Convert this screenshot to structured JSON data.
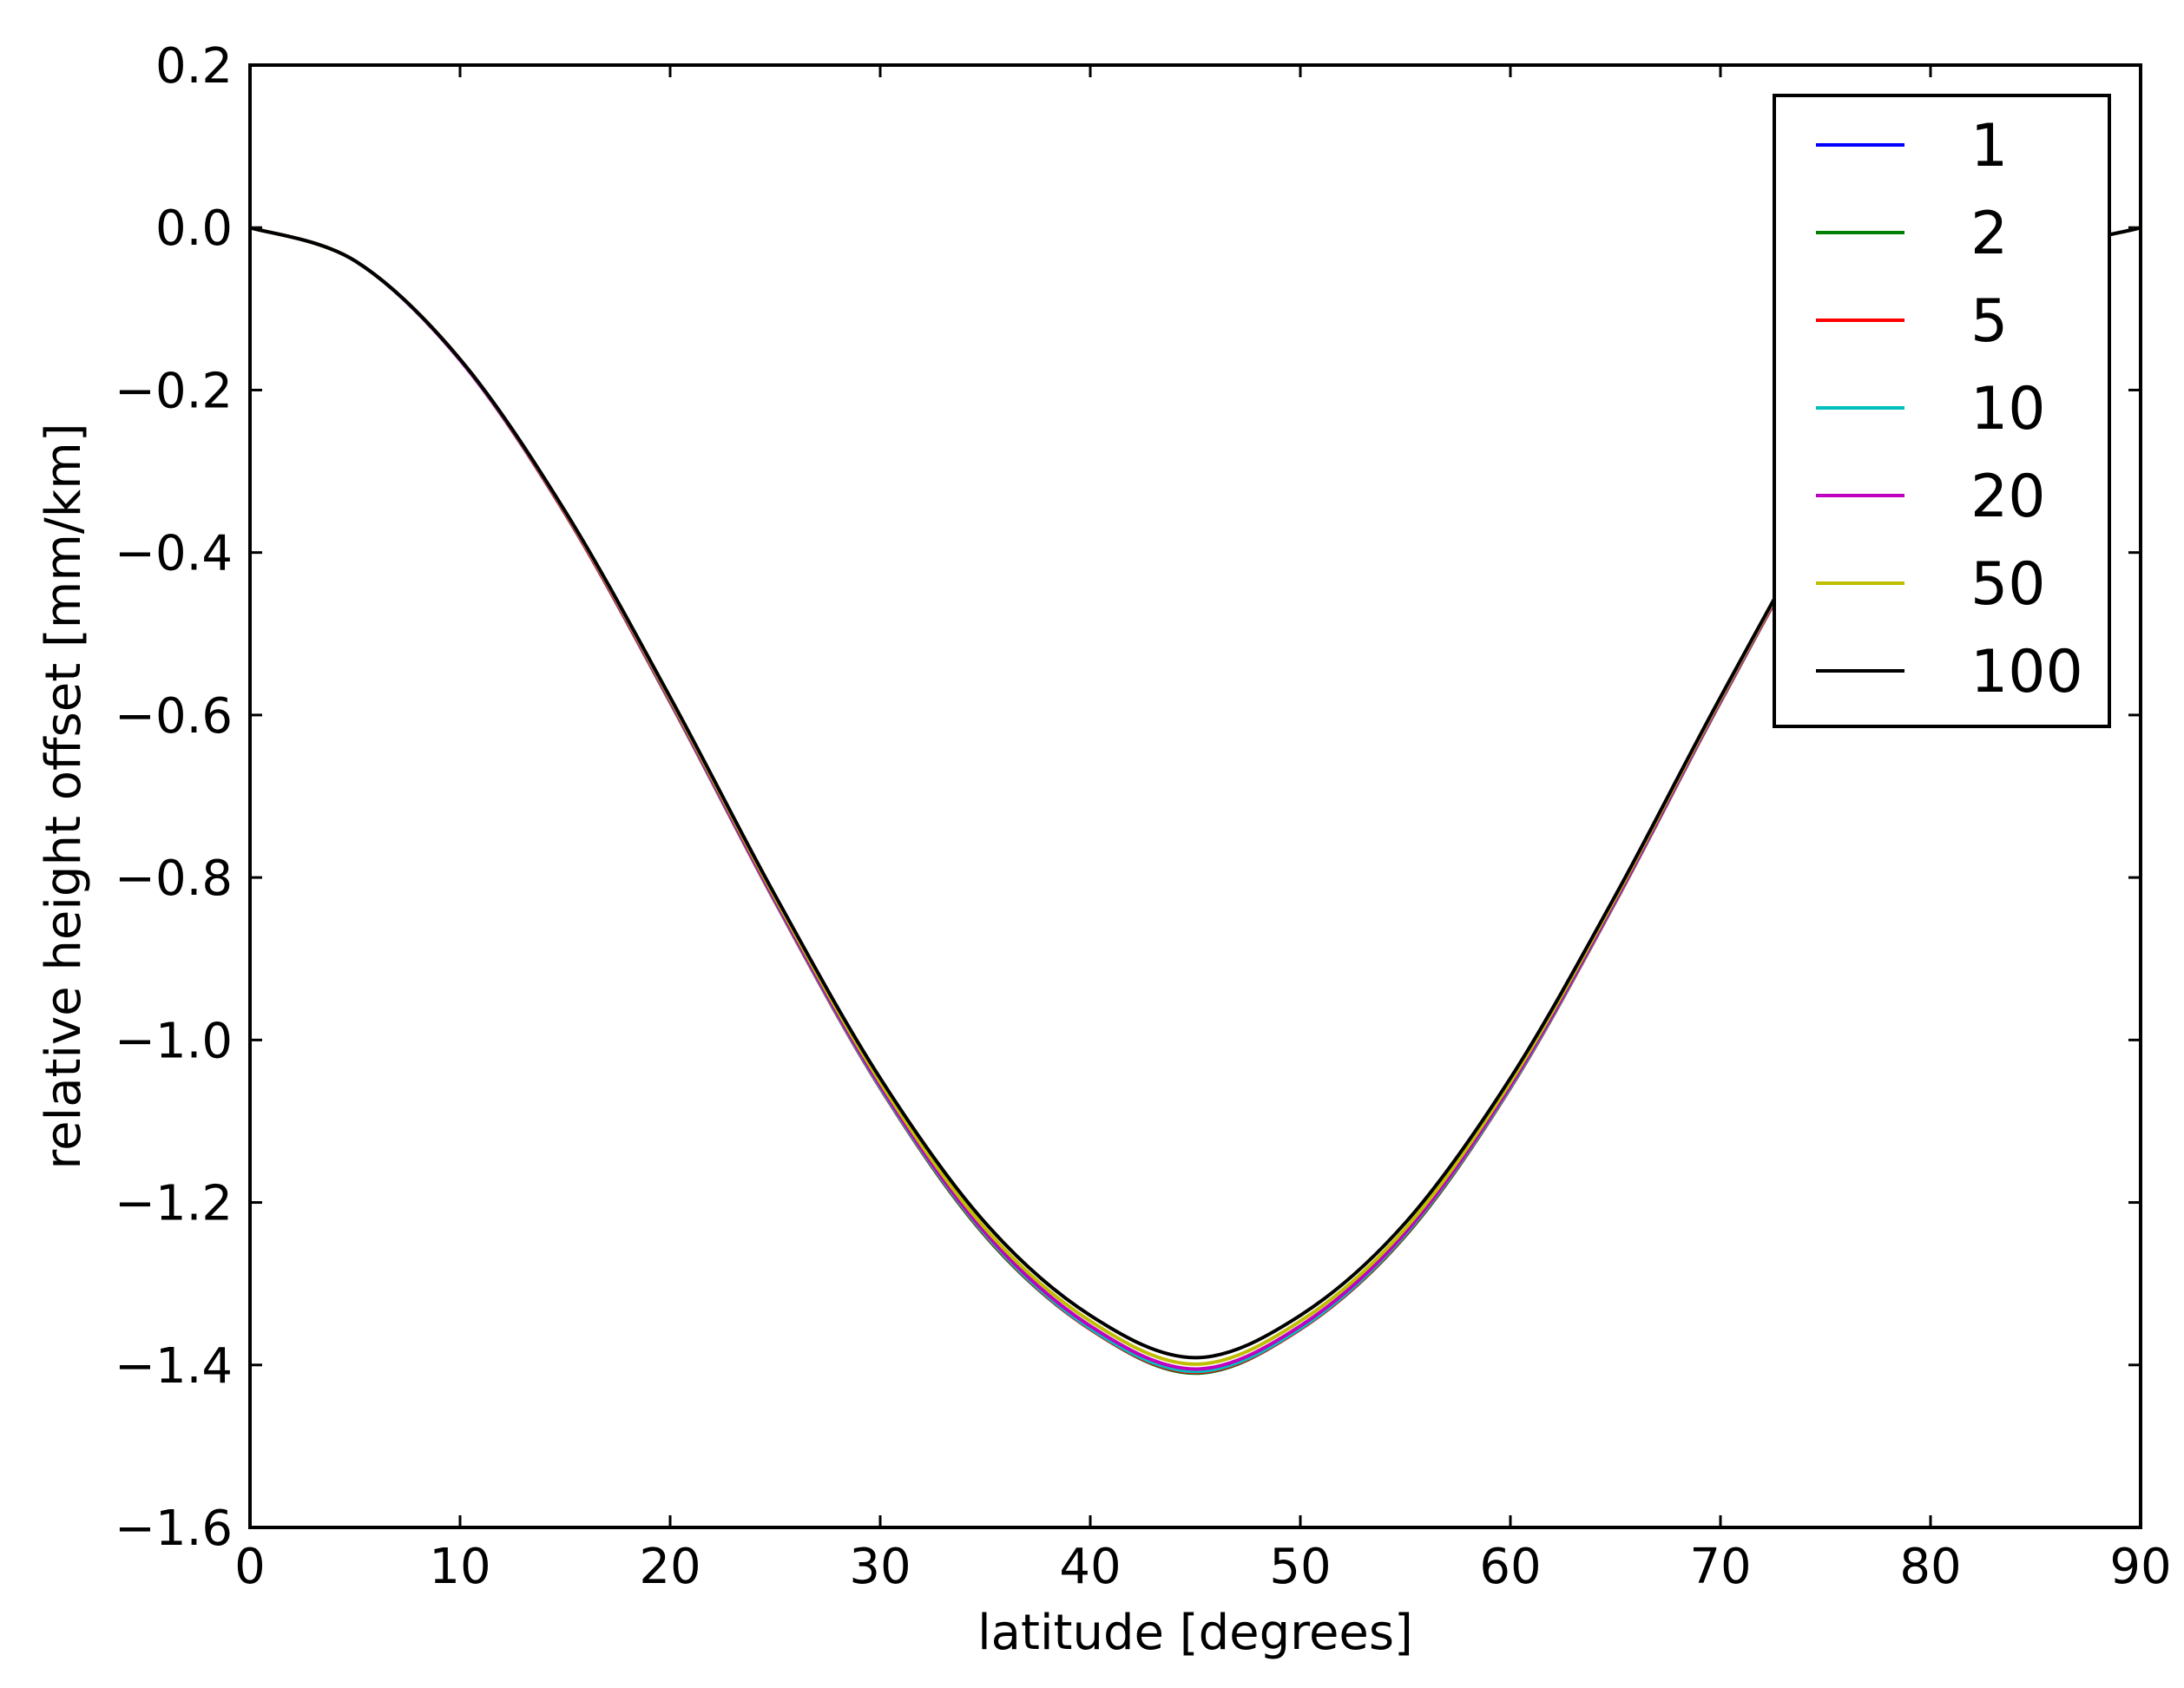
{
  "chart_data": {
    "type": "line",
    "title": "",
    "xlabel": "latitude [degrees]",
    "ylabel": "relative height offset [mm/km]",
    "xlim": [
      0,
      90
    ],
    "ylim": [
      -1.6,
      0.2
    ],
    "xticks": [
      0,
      10,
      20,
      30,
      40,
      50,
      60,
      70,
      80,
      90
    ],
    "xtick_labels": [
      "0",
      "10",
      "20",
      "30",
      "40",
      "50",
      "60",
      "70",
      "80",
      "90"
    ],
    "yticks": [
      0.2,
      0.0,
      -0.2,
      -0.4,
      -0.6,
      -0.8,
      -1.0,
      -1.2,
      -1.4,
      -1.6
    ],
    "ytick_labels": [
      "0.2",
      "0.0",
      "−0.2",
      "−0.4",
      "−0.6",
      "−0.8",
      "−1.0",
      "−1.2",
      "−1.4",
      "−1.6"
    ],
    "grid": false,
    "legend_position": "top-right",
    "x": [
      0,
      5,
      10,
      15,
      20,
      25,
      30,
      35,
      40,
      45,
      50,
      55,
      60,
      65,
      70,
      75,
      80,
      85,
      90
    ],
    "series": [
      {
        "name": "1",
        "color": "#0000ff",
        "values": [
          0.0,
          -0.041,
          -0.163,
          -0.352,
          -0.584,
          -0.83,
          -1.059,
          -1.241,
          -1.356,
          -1.41,
          -1.356,
          -1.241,
          -1.059,
          -0.83,
          -0.584,
          -0.352,
          -0.163,
          -0.041,
          0.0
        ]
      },
      {
        "name": "2",
        "color": "#008000",
        "values": [
          0.0,
          -0.041,
          -0.163,
          -0.352,
          -0.584,
          -0.83,
          -1.059,
          -1.241,
          -1.356,
          -1.41,
          -1.356,
          -1.241,
          -1.059,
          -0.83,
          -0.584,
          -0.352,
          -0.163,
          -0.041,
          0.0
        ]
      },
      {
        "name": "5",
        "color": "#ff0000",
        "values": [
          0.0,
          -0.041,
          -0.163,
          -0.352,
          -0.584,
          -0.83,
          -1.059,
          -1.24,
          -1.356,
          -1.409,
          -1.356,
          -1.24,
          -1.059,
          -0.83,
          -0.584,
          -0.352,
          -0.163,
          -0.041,
          0.0
        ]
      },
      {
        "name": "10",
        "color": "#00bfbf",
        "values": [
          0.0,
          -0.041,
          -0.163,
          -0.351,
          -0.583,
          -0.829,
          -1.058,
          -1.239,
          -1.355,
          -1.408,
          -1.355,
          -1.239,
          -1.058,
          -0.829,
          -0.583,
          -0.351,
          -0.163,
          -0.041,
          0.0
        ]
      },
      {
        "name": "20",
        "color": "#bf00bf",
        "values": [
          0.0,
          -0.041,
          -0.163,
          -0.351,
          -0.582,
          -0.828,
          -1.056,
          -1.237,
          -1.352,
          -1.405,
          -1.352,
          -1.237,
          -1.056,
          -0.828,
          -0.582,
          -0.351,
          -0.163,
          -0.041,
          0.0
        ]
      },
      {
        "name": "50",
        "color": "#bfbf00",
        "values": [
          0.0,
          -0.041,
          -0.162,
          -0.35,
          -0.58,
          -0.825,
          -1.052,
          -1.232,
          -1.346,
          -1.399,
          -1.346,
          -1.232,
          -1.052,
          -0.825,
          -0.58,
          -0.35,
          -0.162,
          -0.041,
          0.0
        ]
      },
      {
        "name": "100",
        "color": "#000000",
        "values": [
          0.0,
          -0.041,
          -0.162,
          -0.349,
          -0.578,
          -0.822,
          -1.047,
          -1.225,
          -1.339,
          -1.391,
          -1.339,
          -1.225,
          -1.047,
          -0.822,
          -0.578,
          -0.349,
          -0.162,
          -0.041,
          0.0
        ]
      }
    ]
  }
}
